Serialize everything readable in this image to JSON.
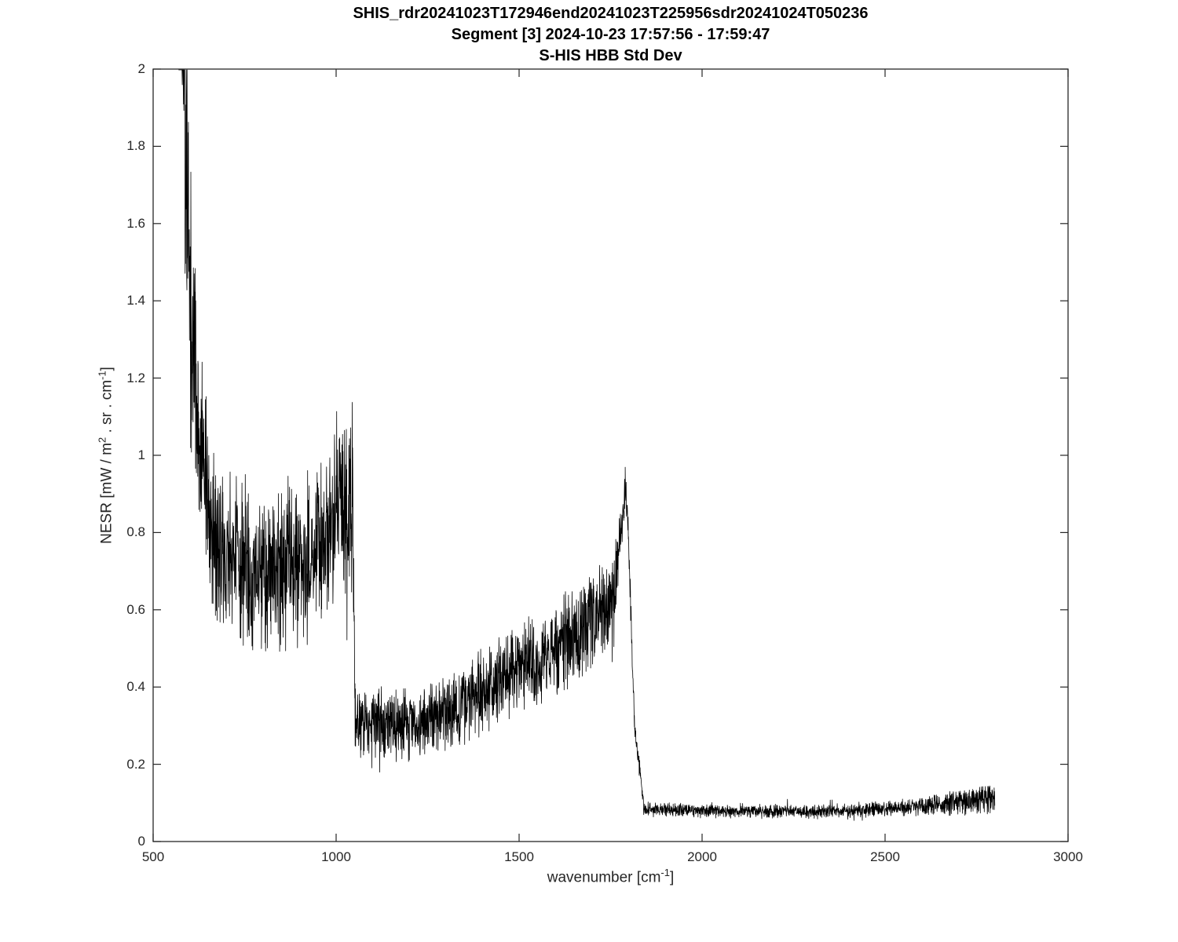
{
  "title": {
    "line1": "SHIS_rdr20241023T172946end20241023T225956sdr20241024T050236",
    "line2": "Segment [3] 2024-10-23 17:57:56 - 17:59:47",
    "line3": "S-HIS HBB Std Dev"
  },
  "axes": {
    "xlabel": {
      "pre": "wavenumber [cm",
      "sup": "-1",
      "post": "]"
    },
    "ylabel": {
      "p1": "NESR [mW / m",
      "s1": "2",
      "p2": " . sr . cm",
      "s2": "-1",
      "p3": "]"
    },
    "x_ticks": [
      "500",
      "1000",
      "1500",
      "2000",
      "2500",
      "3000"
    ],
    "y_ticks": [
      "0",
      "0.2",
      "0.4",
      "0.6",
      "0.8",
      "1",
      "1.2",
      "1.4",
      "1.6",
      "1.8",
      "2"
    ]
  },
  "chart_data": {
    "type": "line",
    "title": "S-HIS HBB Std Dev",
    "subtitle": "Segment [3] 2024-10-23 17:57:56 - 17:59:47",
    "suptitle": "SHIS_rdr20241023T172946end20241023T225956sdr20241024T050236",
    "xlabel": "wavenumber [cm-1]",
    "ylabel": "NESR [mW / m2 . sr . cm-1]",
    "xlim": [
      500,
      3000
    ],
    "ylim": [
      0,
      2
    ],
    "x_tick_values": [
      500,
      1000,
      1500,
      2000,
      2500,
      3000
    ],
    "y_tick_values": [
      0,
      0.2,
      0.4,
      0.6,
      0.8,
      1,
      1.2,
      1.4,
      1.6,
      1.8,
      2
    ],
    "grid": false,
    "legend": "none",
    "line_color": "#000000",
    "line_width": 0.8,
    "sample_step_cm1": 0.6,
    "noise_seed": 12345,
    "series": [
      {
        "name": "S-HIS HBB Std Dev",
        "description": "Noisy standard-deviation spectrum in three detector bands: ~570-1045 cm-1 (mean ~0.7, clipped above 2 near 575, spikes to ~1.3 near 1040), ~1045-1800 cm-1 (baseline ~0.31 rising to peak ~1.0 at 1790 then sharp fall), ~1840-2800 cm-1 (flat ~0.08 rising to ~0.12 with spikes to ~0.2 near 2800).",
        "envelope_segments": [
          {
            "x0": 570,
            "x1": 585,
            "y0": 2.4,
            "y1": 1.9,
            "n0": 0.5,
            "n1": 0.45
          },
          {
            "x0": 585,
            "x1": 605,
            "y0": 1.9,
            "y1": 1.35,
            "n0": 0.45,
            "n1": 0.35
          },
          {
            "x0": 605,
            "x1": 630,
            "y0": 1.35,
            "y1": 1.0,
            "n0": 0.35,
            "n1": 0.25
          },
          {
            "x0": 630,
            "x1": 660,
            "y0": 1.0,
            "y1": 0.82,
            "n0": 0.25,
            "n1": 0.2
          },
          {
            "x0": 660,
            "x1": 760,
            "y0": 0.78,
            "y1": 0.7,
            "n0": 0.2,
            "n1": 0.2
          },
          {
            "x0": 760,
            "x1": 900,
            "y0": 0.7,
            "y1": 0.72,
            "n0": 0.2,
            "n1": 0.2
          },
          {
            "x0": 900,
            "x1": 990,
            "y0": 0.72,
            "y1": 0.8,
            "n0": 0.2,
            "n1": 0.22
          },
          {
            "x0": 990,
            "x1": 1045,
            "y0": 0.82,
            "y1": 0.9,
            "n0": 0.24,
            "n1": 0.26
          },
          {
            "x0": 1045,
            "x1": 1052,
            "y0": 0.9,
            "y1": 0.32,
            "n0": 0.2,
            "n1": 0.1
          },
          {
            "x0": 1052,
            "x1": 1200,
            "y0": 0.31,
            "y1": 0.3,
            "n0": 0.09,
            "n1": 0.09
          },
          {
            "x0": 1200,
            "x1": 1320,
            "y0": 0.3,
            "y1": 0.34,
            "n0": 0.09,
            "n1": 0.1
          },
          {
            "x0": 1320,
            "x1": 1450,
            "y0": 0.34,
            "y1": 0.42,
            "n0": 0.1,
            "n1": 0.11
          },
          {
            "x0": 1450,
            "x1": 1560,
            "y0": 0.42,
            "y1": 0.46,
            "n0": 0.11,
            "n1": 0.12
          },
          {
            "x0": 1560,
            "x1": 1660,
            "y0": 0.46,
            "y1": 0.54,
            "n0": 0.12,
            "n1": 0.13
          },
          {
            "x0": 1660,
            "x1": 1760,
            "y0": 0.54,
            "y1": 0.62,
            "n0": 0.13,
            "n1": 0.13
          },
          {
            "x0": 1760,
            "x1": 1790,
            "y0": 0.66,
            "y1": 0.92,
            "n0": 0.1,
            "n1": 0.08
          },
          {
            "x0": 1790,
            "x1": 1800,
            "y0": 0.95,
            "y1": 0.75,
            "n0": 0.06,
            "n1": 0.05
          },
          {
            "x0": 1800,
            "x1": 1815,
            "y0": 0.75,
            "y1": 0.3,
            "n0": 0.04,
            "n1": 0.03
          },
          {
            "x0": 1815,
            "x1": 1840,
            "y0": 0.3,
            "y1": 0.11,
            "n0": 0.03,
            "n1": 0.02
          },
          {
            "x0": 1840,
            "x1": 2100,
            "y0": 0.085,
            "y1": 0.078,
            "n0": 0.018,
            "n1": 0.016
          },
          {
            "x0": 2100,
            "x1": 2400,
            "y0": 0.078,
            "y1": 0.078,
            "n0": 0.016,
            "n1": 0.018
          },
          {
            "x0": 2400,
            "x1": 2600,
            "y0": 0.08,
            "y1": 0.09,
            "n0": 0.018,
            "n1": 0.022
          },
          {
            "x0": 2600,
            "x1": 2720,
            "y0": 0.09,
            "y1": 0.105,
            "n0": 0.025,
            "n1": 0.035
          },
          {
            "x0": 2720,
            "x1": 2800,
            "y0": 0.105,
            "y1": 0.115,
            "n0": 0.035,
            "n1": 0.04
          }
        ]
      }
    ]
  }
}
